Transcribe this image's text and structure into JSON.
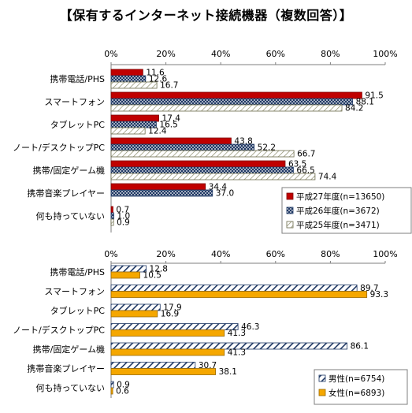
{
  "title": "【保有するインターネット接続機器（複数回答）】",
  "colors": {
    "h27": "#c00000",
    "h26": "#1f3864",
    "h25": "#ffffff",
    "male": "#1f3864",
    "female": "#f5a700",
    "axis": "#7f7f7f"
  },
  "chart_data": [
    {
      "type": "bar",
      "orientation": "horizontal",
      "title": "",
      "xlabel": "",
      "ylabel": "",
      "xlim": [
        0,
        100
      ],
      "ticks": [
        "0%",
        "20%",
        "40%",
        "60%",
        "80%",
        "100%"
      ],
      "categories": [
        "携帯電話/PHS",
        "スマートフォン",
        "タブレットPC",
        "ノート/デスクトップPC",
        "携帯/固定ゲーム機",
        "携帯音楽プレイヤー",
        "何も持っていない"
      ],
      "series": [
        {
          "name": "平成27年度(n=13650)",
          "pattern": "solid-red",
          "values": [
            11.6,
            91.5,
            17.4,
            43.8,
            63.5,
            34.4,
            0.7
          ]
        },
        {
          "name": "平成26年度(n=3672)",
          "pattern": "dotted-navy",
          "values": [
            12.6,
            88.1,
            16.5,
            52.2,
            66.5,
            37.0,
            1.0
          ]
        },
        {
          "name": "平成25年度(n=3471)",
          "pattern": "diagonal-light",
          "values": [
            16.7,
            84.2,
            12.4,
            66.7,
            74.4,
            null,
            0.9
          ]
        }
      ],
      "value_labels": [
        [
          "11.6",
          "91.5",
          "17.4",
          "43.8",
          "63.5",
          "34.4",
          "0.7"
        ],
        [
          "12.6",
          "88.1",
          "16.5",
          "52.2",
          "66.5",
          "37.0",
          "1.0"
        ],
        [
          "16.7",
          "84.2",
          "12.4",
          "66.7",
          "74.4",
          "",
          "0.9"
        ]
      ],
      "legend_position": "bottom-right"
    },
    {
      "type": "bar",
      "orientation": "horizontal",
      "title": "",
      "xlabel": "",
      "ylabel": "",
      "xlim": [
        0,
        100
      ],
      "ticks": [
        "0%",
        "20%",
        "40%",
        "60%",
        "80%",
        "100%"
      ],
      "categories": [
        "携帯電話/PHS",
        "スマートフォン",
        "タブレットPC",
        "ノート/デスクトップPC",
        "携帯/固定ゲーム機",
        "携帯音楽プレイヤー",
        "何も持っていない"
      ],
      "series": [
        {
          "name": "男性(n=6754)",
          "pattern": "diagonal-navy",
          "values": [
            12.8,
            89.7,
            17.9,
            46.3,
            86.1,
            30.7,
            0.9
          ]
        },
        {
          "name": "女性(n=6893)",
          "pattern": "solid-orange",
          "values": [
            10.5,
            93.3,
            16.9,
            41.3,
            41.3,
            38.1,
            0.6
          ]
        }
      ],
      "value_labels": [
        [
          "12.8",
          "89.7",
          "17.9",
          "46.3",
          "86.1",
          "30.7",
          "0.9"
        ],
        [
          "10.5",
          "93.3",
          "16.9",
          "41.3",
          "41.3",
          "38.1",
          "0.6"
        ]
      ],
      "legend_position": "bottom-right"
    }
  ]
}
